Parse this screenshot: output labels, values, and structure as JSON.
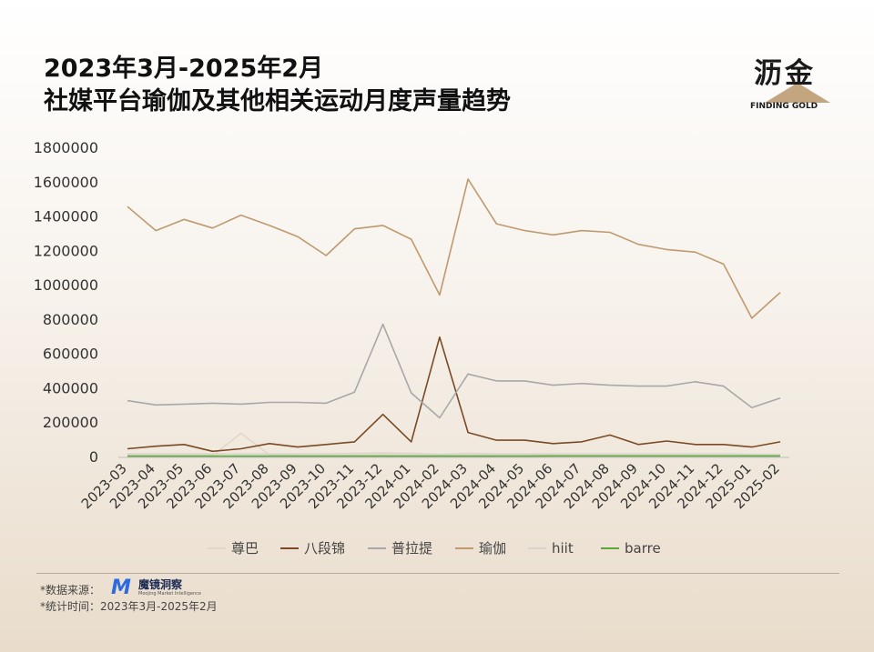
{
  "title_line1": "2023年3月-2025年2月",
  "title_line2": "社媒平台瑜伽及其他相关运动月度声量趋势",
  "logo": {
    "name": "沥金",
    "sub": "FINDING GOLD"
  },
  "footer": {
    "source_label": "*数据来源：",
    "brand_name": "魔镜洞察",
    "brand_tag": "Moojing Market Intelligence",
    "period": "*统计时间：2023年3月-2025年2月"
  },
  "chart_data": {
    "type": "line",
    "ylim": [
      0,
      1800000
    ],
    "yticks": [
      0,
      200000,
      400000,
      600000,
      800000,
      1000000,
      1200000,
      1400000,
      1600000,
      1800000
    ],
    "ytick_labels": [
      "0",
      "200000",
      "400000",
      "600000",
      "800000",
      "1000000",
      "1200000",
      "1400000",
      "1600000",
      "1800000"
    ],
    "grid": false,
    "legend_position": "bottom",
    "categories": [
      "2023-03",
      "2023-04",
      "2023-05",
      "2023-06",
      "2023-07",
      "2023-08",
      "2023-09",
      "2023-10",
      "2023-11",
      "2023-12",
      "2024-01",
      "2024-02",
      "2024-03",
      "2024-04",
      "2024-05",
      "2024-06",
      "2024-07",
      "2024-08",
      "2024-09",
      "2024-10",
      "2024-11",
      "2024-12",
      "2025-01",
      "2025-02"
    ],
    "series": [
      {
        "name": "尊巴",
        "color": "#e2d6c8",
        "values": [
          5000,
          5000,
          5000,
          5000,
          135000,
          10000,
          5000,
          5000,
          8000,
          10000,
          8000,
          5000,
          8000,
          8000,
          8000,
          10000,
          8000,
          8000,
          8000,
          8000,
          8000,
          8000,
          5000,
          5000
        ]
      },
      {
        "name": "八段锦",
        "color": "#7a4a25",
        "values": [
          45000,
          60000,
          70000,
          30000,
          45000,
          75000,
          55000,
          70000,
          85000,
          245000,
          85000,
          695000,
          140000,
          95000,
          95000,
          75000,
          85000,
          125000,
          70000,
          90000,
          70000,
          70000,
          55000,
          85000
        ]
      },
      {
        "name": "普拉提",
        "color": "#a8a8a8",
        "values": [
          325000,
          300000,
          305000,
          310000,
          305000,
          315000,
          315000,
          310000,
          375000,
          770000,
          370000,
          225000,
          480000,
          440000,
          440000,
          415000,
          425000,
          415000,
          410000,
          410000,
          435000,
          410000,
          285000,
          340000
        ]
      },
      {
        "name": "瑜伽",
        "color": "#bf9a6e",
        "values": [
          1455000,
          1315000,
          1380000,
          1330000,
          1405000,
          1345000,
          1280000,
          1170000,
          1325000,
          1345000,
          1265000,
          940000,
          1615000,
          1355000,
          1315000,
          1290000,
          1315000,
          1305000,
          1235000,
          1205000,
          1190000,
          1120000,
          805000,
          955000
        ]
      },
      {
        "name": "hiit",
        "color": "#d9d4cc",
        "values": [
          15000,
          15000,
          15000,
          15000,
          15000,
          15000,
          15000,
          15000,
          18000,
          20000,
          18000,
          12000,
          18000,
          15000,
          15000,
          15000,
          15000,
          15000,
          15000,
          15000,
          15000,
          15000,
          12000,
          12000
        ]
      },
      {
        "name": "barre",
        "color": "#5aa83c",
        "values": [
          2000,
          2000,
          2000,
          2000,
          2000,
          2000,
          2000,
          2000,
          2000,
          2000,
          2000,
          2000,
          2000,
          2000,
          2000,
          3000,
          3000,
          3000,
          3000,
          3000,
          3000,
          3000,
          3000,
          3000
        ]
      }
    ]
  }
}
